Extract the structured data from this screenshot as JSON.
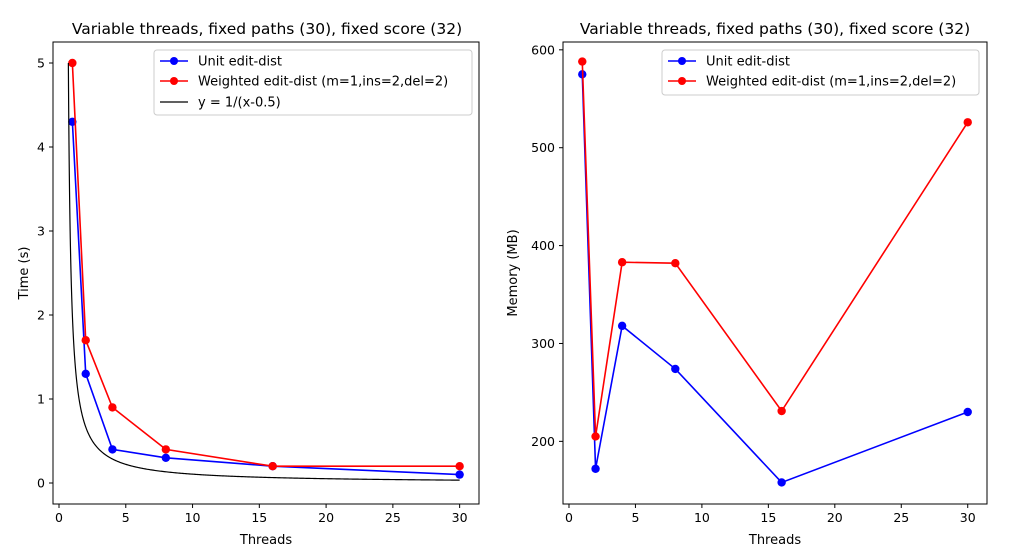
{
  "chart_data": [
    {
      "type": "line",
      "title": "Variable threads, fixed paths (30), fixed score (32)",
      "xlabel": "Threads",
      "ylabel": "Time (s)",
      "xlim": [
        -0.45,
        31.45
      ],
      "ylim": [
        -0.25,
        5.25
      ],
      "xticks": [
        0,
        5,
        10,
        15,
        20,
        25,
        30
      ],
      "yticks": [
        0,
        1,
        2,
        3,
        4,
        5
      ],
      "grid": false,
      "legend_position": "top-right",
      "x": [
        1,
        2,
        4,
        8,
        16,
        30
      ],
      "series": [
        {
          "name": "Unit edit-dist",
          "color": "#0000ff",
          "marker": "circle",
          "values": [
            4.3,
            1.3,
            0.4,
            0.3,
            0.2,
            0.1
          ]
        },
        {
          "name": "Weighted edit-dist (m=1,ins=2,del=2)",
          "color": "#ff0000",
          "marker": "circle",
          "values": [
            5.0,
            1.7,
            0.9,
            0.4,
            0.2,
            0.2
          ]
        },
        {
          "name": "y = 1/(x-0.5)",
          "color": "#000000",
          "marker": "none",
          "curve": "reciprocal",
          "x_range": [
            0.7,
            30
          ]
        }
      ]
    },
    {
      "type": "line",
      "title": "Variable threads, fixed paths (30), fixed score (32)",
      "xlabel": "Threads",
      "ylabel": "Memory (MB)",
      "xlim": [
        -0.45,
        31.45
      ],
      "ylim": [
        136,
        608
      ],
      "xticks": [
        0,
        5,
        10,
        15,
        20,
        25,
        30
      ],
      "yticks": [
        200,
        300,
        400,
        500,
        600
      ],
      "grid": false,
      "legend_position": "top-right",
      "x": [
        1,
        2,
        4,
        8,
        16,
        30
      ],
      "series": [
        {
          "name": "Unit edit-dist",
          "color": "#0000ff",
          "marker": "circle",
          "values": [
            575,
            172,
            318,
            274,
            158,
            230
          ]
        },
        {
          "name": "Weighted edit-dist (m=1,ins=2,del=2)",
          "color": "#ff0000",
          "marker": "circle",
          "values": [
            588,
            205,
            383,
            382,
            231,
            526
          ]
        }
      ]
    }
  ]
}
